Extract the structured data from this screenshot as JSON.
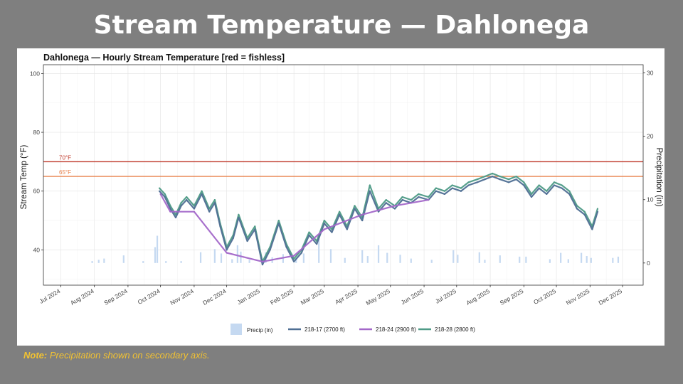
{
  "slide": {
    "title": "Stream Temperature — Dahlonega",
    "note_label": "Note:",
    "note_text": "Precipitation shown on secondary axis."
  },
  "chart_data": {
    "type": "line",
    "title": "Dahlonega — Hourly Stream Temperature  [red = fishless]",
    "ylabel": "Stream Temp (°F)",
    "y2label": "Precipitation (in)",
    "ylim": [
      28,
      103
    ],
    "y_ticks": [
      40,
      60,
      80,
      100
    ],
    "y2lim": [
      -3.5,
      31.3
    ],
    "y2_ticks": [
      0,
      10,
      20,
      30
    ],
    "xlim": [
      "2024-06-15",
      "2025-12-20"
    ],
    "x_ticks": [
      {
        "date": "2024-07-01",
        "label": "Jul 2024"
      },
      {
        "date": "2024-08-01",
        "label": "Aug 2024"
      },
      {
        "date": "2024-09-01",
        "label": "Sep 2024"
      },
      {
        "date": "2024-10-01",
        "label": "Oct 2024"
      },
      {
        "date": "2024-11-01",
        "label": "Nov 2024"
      },
      {
        "date": "2024-12-01",
        "label": "Dec 2024"
      },
      {
        "date": "2025-01-01",
        "label": "Jan 2025"
      },
      {
        "date": "2025-02-01",
        "label": "Feb 2025"
      },
      {
        "date": "2025-03-01",
        "label": "Mar 2025"
      },
      {
        "date": "2025-04-01",
        "label": "Apr 2025"
      },
      {
        "date": "2025-05-01",
        "label": "May 2025"
      },
      {
        "date": "2025-06-01",
        "label": "Jun 2025"
      },
      {
        "date": "2025-07-01",
        "label": "Jul 2025"
      },
      {
        "date": "2025-08-01",
        "label": "Aug 2025"
      },
      {
        "date": "2025-09-01",
        "label": "Sep 2025"
      },
      {
        "date": "2025-10-01",
        "label": "Oct 2025"
      },
      {
        "date": "2025-11-01",
        "label": "Nov 2025"
      },
      {
        "date": "2025-12-01",
        "label": "Dec 2025"
      }
    ],
    "grid": true,
    "legend_position": "bottom",
    "thresholds": [
      {
        "label": "70°F",
        "value": 70,
        "color": "#c0392b"
      },
      {
        "label": "65°F",
        "value": 65,
        "color": "#e8834e"
      }
    ],
    "legend": [
      {
        "name": "Precip (in)",
        "kind": "rect",
        "color": "#c5d9f1"
      },
      {
        "name": "218-17 (2700 ft)",
        "kind": "line",
        "color": "#4f6f94"
      },
      {
        "name": "218-24 (2900 ft)",
        "kind": "line",
        "color": "#a368c9"
      },
      {
        "name": "218-28 (2800 ft)",
        "kind": "line",
        "color": "#4f9b87"
      }
    ],
    "series": [
      {
        "name": "218-28 (2800 ft)",
        "color": "#4f9b87",
        "x": [
          "2024-09-30",
          "2024-10-05",
          "2024-10-10",
          "2024-10-15",
          "2024-10-20",
          "2024-10-25",
          "2024-11-01",
          "2024-11-08",
          "2024-11-15",
          "2024-11-20",
          "2024-11-25",
          "2024-12-01",
          "2024-12-07",
          "2024-12-12",
          "2024-12-20",
          "2024-12-27",
          "2025-01-03",
          "2025-01-10",
          "2025-01-18",
          "2025-01-25",
          "2025-02-01",
          "2025-02-08",
          "2025-02-15",
          "2025-02-22",
          "2025-03-01",
          "2025-03-08",
          "2025-03-15",
          "2025-03-22",
          "2025-03-29",
          "2025-04-05",
          "2025-04-12",
          "2025-04-20",
          "2025-04-27",
          "2025-05-05",
          "2025-05-12",
          "2025-05-20",
          "2025-05-27",
          "2025-06-05",
          "2025-06-12",
          "2025-06-20",
          "2025-06-27",
          "2025-07-05",
          "2025-07-12",
          "2025-07-20",
          "2025-07-27",
          "2025-08-03",
          "2025-08-10",
          "2025-08-18",
          "2025-08-25",
          "2025-09-01",
          "2025-09-08",
          "2025-09-15",
          "2025-09-22",
          "2025-09-29",
          "2025-10-06",
          "2025-10-13",
          "2025-10-20",
          "2025-10-27",
          "2025-11-03",
          "2025-11-08"
        ],
        "y": [
          61,
          59,
          55,
          52,
          56,
          58,
          55,
          60,
          54,
          57,
          49,
          41,
          45,
          52,
          44,
          48,
          36,
          41,
          50,
          42,
          37,
          40,
          46,
          43,
          50,
          47,
          53,
          48,
          55,
          51,
          62,
          54,
          57,
          55,
          58,
          57,
          59,
          58,
          61,
          60,
          62,
          61,
          63,
          64,
          65,
          66,
          65,
          64,
          65,
          63,
          59,
          62,
          60,
          63,
          62,
          60,
          55,
          53,
          48,
          54
        ]
      },
      {
        "name": "218-17 (2700 ft)",
        "color": "#4f6f94",
        "x": [
          "2024-09-30",
          "2024-10-05",
          "2024-10-10",
          "2024-10-15",
          "2024-10-20",
          "2024-10-25",
          "2024-11-01",
          "2024-11-08",
          "2024-11-15",
          "2024-11-20",
          "2024-11-25",
          "2024-12-01",
          "2024-12-07",
          "2024-12-12",
          "2024-12-20",
          "2024-12-27",
          "2025-01-03",
          "2025-01-10",
          "2025-01-18",
          "2025-01-25",
          "2025-02-01",
          "2025-02-08",
          "2025-02-15",
          "2025-02-22",
          "2025-03-01",
          "2025-03-08",
          "2025-03-15",
          "2025-03-22",
          "2025-03-29",
          "2025-04-05",
          "2025-04-12",
          "2025-04-20",
          "2025-04-27",
          "2025-05-05",
          "2025-05-12",
          "2025-05-20",
          "2025-05-27",
          "2025-06-05",
          "2025-06-12",
          "2025-06-20",
          "2025-06-27",
          "2025-07-05",
          "2025-07-12",
          "2025-07-20",
          "2025-07-27",
          "2025-08-03",
          "2025-08-10",
          "2025-08-18",
          "2025-08-25",
          "2025-09-01",
          "2025-09-08",
          "2025-09-15",
          "2025-09-22",
          "2025-09-29",
          "2025-10-06",
          "2025-10-13",
          "2025-10-20",
          "2025-10-27",
          "2025-11-03",
          "2025-11-08"
        ],
        "y": [
          60,
          58,
          54,
          51,
          55,
          57,
          54,
          59,
          53,
          56,
          48,
          40,
          44,
          51,
          43,
          47,
          35,
          40,
          49,
          41,
          36,
          39,
          45,
          42,
          49,
          46,
          52,
          47,
          54,
          50,
          60,
          53,
          56,
          54,
          57,
          56,
          58,
          57,
          60,
          59,
          61,
          60,
          62,
          63,
          64,
          65,
          64,
          63,
          64,
          62,
          58,
          61,
          59,
          62,
          61,
          59,
          54,
          52,
          47,
          53
        ]
      },
      {
        "name": "218-24 (2900 ft)",
        "color": "#a368c9",
        "x": [
          "2024-10-01",
          "2024-10-10",
          "2024-11-01",
          "2024-12-01",
          "2025-01-03",
          "2025-02-01",
          "2025-03-01",
          "2025-04-05",
          "2025-05-05",
          "2025-06-05"
        ],
        "y": [
          59,
          53,
          53,
          39,
          36,
          38,
          47,
          52,
          55,
          57
        ]
      }
    ],
    "precip": {
      "x": [
        "2024-07-30",
        "2024-08-05",
        "2024-08-10",
        "2024-08-28",
        "2024-09-15",
        "2024-09-26",
        "2024-09-28",
        "2024-10-06",
        "2024-10-20",
        "2024-11-07",
        "2024-11-20",
        "2024-11-26",
        "2024-12-06",
        "2024-12-11",
        "2024-12-14",
        "2024-12-22",
        "2025-01-06",
        "2025-01-12",
        "2025-01-22",
        "2025-02-03",
        "2025-02-10",
        "2025-02-24",
        "2025-03-07",
        "2025-03-20",
        "2025-04-05",
        "2025-04-10",
        "2025-04-20",
        "2025-04-28",
        "2025-05-10",
        "2025-05-20",
        "2025-06-08",
        "2025-06-28",
        "2025-07-02",
        "2025-07-22",
        "2025-07-27",
        "2025-08-10",
        "2025-08-28",
        "2025-09-03",
        "2025-09-25",
        "2025-10-05",
        "2025-10-12",
        "2025-10-24",
        "2025-10-29",
        "2025-11-02",
        "2025-11-22",
        "2025-11-27"
      ],
      "values": [
        0.3,
        0.5,
        0.7,
        1.2,
        0.3,
        2.5,
        4.3,
        0.3,
        0.3,
        1.7,
        2.2,
        1.5,
        0.6,
        2.8,
        1.8,
        0.5,
        1.7,
        0.9,
        1.4,
        0.8,
        1.5,
        3.8,
        2.2,
        0.8,
        2.0,
        1.1,
        2.8,
        1.6,
        1.3,
        0.7,
        0.5,
        2.0,
        1.3,
        1.7,
        0.5,
        1.2,
        1.0,
        1.0,
        0.6,
        1.6,
        0.6,
        1.6,
        1.1,
        0.8,
        0.8,
        1.0
      ]
    }
  }
}
